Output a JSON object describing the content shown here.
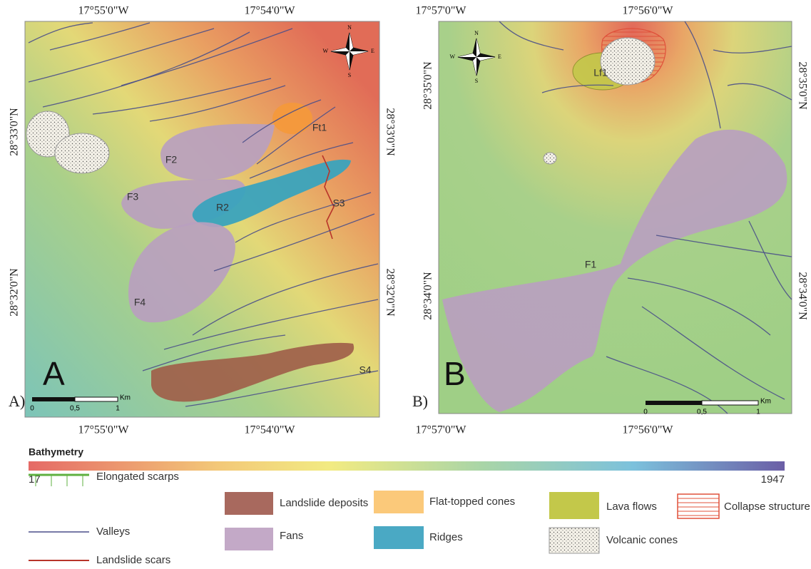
{
  "panels": [
    {
      "letter": "A",
      "caption": "A)",
      "top_labels": [
        "17°55'0\"W",
        "17°54'0\"W"
      ],
      "bottom_labels": [
        "17°55'0\"W",
        "17°54'0\"W"
      ],
      "left_labels": [
        "28°33'0\"N",
        "28°32'0\"N"
      ],
      "right_labels": [
        "28°33'0\"N",
        "28°32'0\"N"
      ],
      "features": [
        {
          "label": "Ft1"
        },
        {
          "label": "F2"
        },
        {
          "label": "F3"
        },
        {
          "label": "R2"
        },
        {
          "label": "S3"
        },
        {
          "label": "F4"
        },
        {
          "label": "S4"
        }
      ],
      "scale": {
        "ticks": [
          "0",
          "0,5",
          "1"
        ],
        "unit": "Km"
      },
      "compass": {
        "n": "N",
        "e": "E",
        "s": "S",
        "w": "W"
      }
    },
    {
      "letter": "B",
      "caption": "B)",
      "top_labels": [
        "17°57'0\"W",
        "17°56'0\"W"
      ],
      "bottom_labels": [
        "17°57'0\"W",
        "17°56'0\"W"
      ],
      "left_labels": [
        "28°35'0\"N",
        "28°34'0\"N"
      ],
      "right_labels": [
        "28°35'0\"N",
        "28°34'0\"N"
      ],
      "features": [
        {
          "label": "Lf1"
        },
        {
          "label": "F1"
        }
      ],
      "scale": {
        "ticks": [
          "0",
          "0,5",
          "1"
        ],
        "unit": "Km"
      },
      "compass": {
        "n": "N",
        "e": "E",
        "s": "S",
        "w": "W"
      }
    }
  ],
  "legend": {
    "bathymetry": {
      "title": "Bathymetry",
      "min": 17,
      "max": 1947
    },
    "items": [
      {
        "label": "Elongated scarps"
      },
      {
        "label": "Valleys"
      },
      {
        "label": "Landslide scars"
      },
      {
        "label": "Landslide deposits"
      },
      {
        "label": "Fans"
      },
      {
        "label": "Flat-topped cones"
      },
      {
        "label": "Ridges"
      },
      {
        "label": "Lava flows"
      },
      {
        "label": "Volcanic cones"
      },
      {
        "label": "Collapse structure"
      }
    ]
  }
}
